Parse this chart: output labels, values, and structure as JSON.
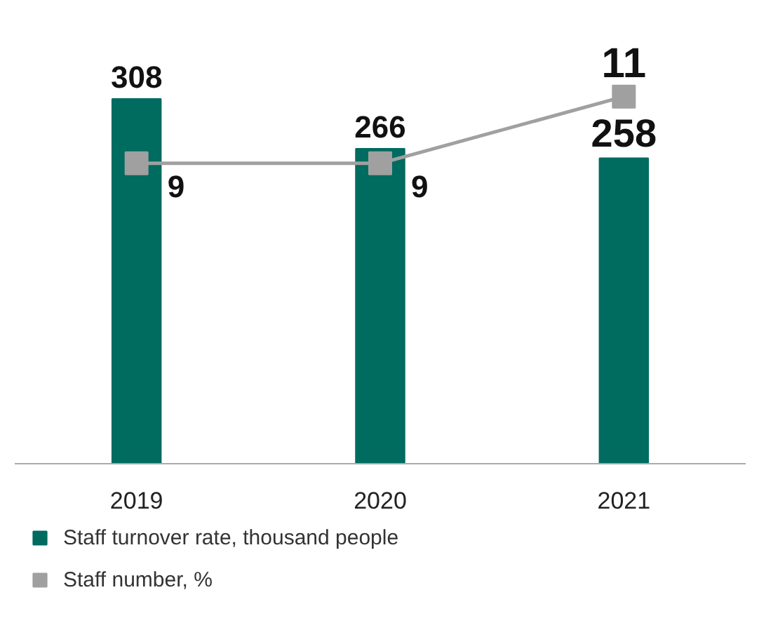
{
  "chart_data": {
    "type": "bar",
    "categories": [
      "2019",
      "2020",
      "2021"
    ],
    "series": [
      {
        "name": "Staff turnover rate, thousand people",
        "color": "#006b5f",
        "values": [
          308,
          266,
          258
        ]
      },
      {
        "name": "Staff number, %",
        "type": "line",
        "axis": "y2",
        "color": "#a0a0a0",
        "values": [
          9,
          9,
          11
        ],
        "marker": "square"
      }
    ],
    "data_labels": true,
    "legend": "bottom",
    "grid": false
  }
}
